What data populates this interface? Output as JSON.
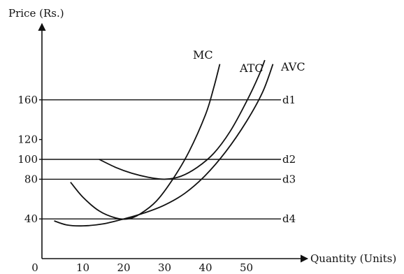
{
  "chart_data": {
    "type": "line",
    "title": "",
    "xlabel": "Quantity (Units)",
    "ylabel": "Price (Rs.)",
    "xlim": [
      0,
      60
    ],
    "ylim": [
      0,
      200
    ],
    "x_ticks": [
      {
        "value": 0,
        "label": "0"
      },
      {
        "value": 10,
        "label": "10"
      },
      {
        "value": 20,
        "label": "20"
      },
      {
        "value": 30,
        "label": "30"
      },
      {
        "value": 40,
        "label": "40"
      },
      {
        "value": 50,
        "label": "50"
      }
    ],
    "y_ticks": [
      {
        "value": 40,
        "label": "40"
      },
      {
        "value": 80,
        "label": "80"
      },
      {
        "value": 100,
        "label": "100"
      },
      {
        "value": 120,
        "label": "120"
      },
      {
        "value": 160,
        "label": "160"
      }
    ],
    "price_lines": [
      {
        "name": "d1",
        "value": 160
      },
      {
        "name": "d2",
        "value": 100
      },
      {
        "name": "d3",
        "value": 80
      },
      {
        "name": "d4",
        "value": 40
      }
    ],
    "series": [
      {
        "name": "MC",
        "points": [
          [
            7,
            77
          ],
          [
            10,
            62
          ],
          [
            14,
            48
          ],
          [
            18,
            41
          ],
          [
            21,
            40
          ],
          [
            24,
            45
          ],
          [
            28,
            58
          ],
          [
            32,
            80
          ],
          [
            36,
            108
          ],
          [
            40,
            145
          ],
          [
            42,
            172
          ],
          [
            43.5,
            196
          ]
        ]
      },
      {
        "name": "ATC",
        "points": [
          [
            14,
            100
          ],
          [
            18,
            92
          ],
          [
            22,
            86
          ],
          [
            26,
            82
          ],
          [
            30,
            80
          ],
          [
            34,
            83
          ],
          [
            38,
            92
          ],
          [
            42,
            106
          ],
          [
            46,
            128
          ],
          [
            50,
            158
          ],
          [
            53,
            184
          ],
          [
            54.5,
            200
          ]
        ]
      },
      {
        "name": "AVC",
        "points": [
          [
            3,
            38
          ],
          [
            6,
            34
          ],
          [
            10,
            33
          ],
          [
            15,
            35
          ],
          [
            20,
            40
          ],
          [
            25,
            46
          ],
          [
            30,
            54
          ],
          [
            35,
            66
          ],
          [
            40,
            84
          ],
          [
            45,
            108
          ],
          [
            50,
            138
          ],
          [
            54,
            168
          ],
          [
            56.5,
            196
          ]
        ]
      }
    ]
  }
}
